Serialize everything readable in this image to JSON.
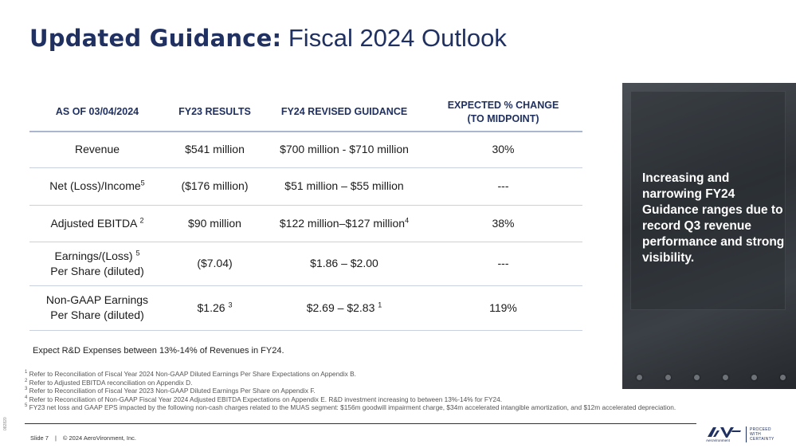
{
  "title": {
    "bold": "Updated Guidance:",
    "light": "Fiscal 2024 Outlook"
  },
  "table": {
    "headers": [
      "AS OF 03/04/2024",
      "FY23 RESULTS",
      "FY24 REVISED GUIDANCE",
      "EXPECTED % CHANGE",
      "(TO MIDPOINT)"
    ],
    "rows": [
      {
        "metric": "Revenue",
        "fy23": "$541 million",
        "fy24": "$700 million - $710 million",
        "change": "30%"
      },
      {
        "metric": "Net (Loss)/Income",
        "metric_sup": "5",
        "fy23": "($176 million)",
        "fy24": "$51 million – $55 million",
        "change": "---"
      },
      {
        "metric": "Adjusted EBITDA",
        "metric_sup": "2",
        "fy23": "$90 million",
        "fy24": "$122 million–$127 million",
        "fy24_sup": "4",
        "change": "38%"
      },
      {
        "metric_line1": "Earnings/(Loss)",
        "metric_sup": "5",
        "metric_line2": "Per Share (diluted)",
        "fy23": "($7.04)",
        "fy24": "$1.86 – $2.00",
        "change": "---"
      },
      {
        "metric_line1": "Non-GAAP Earnings",
        "metric_line2": "Per Share (diluted)",
        "fy23": "$1.26",
        "fy23_sup": "3",
        "fy24": "$2.69 – $2.83",
        "fy24_sup": "1",
        "change": "119%"
      }
    ]
  },
  "rnd_note": "Expect R&D Expenses between 13%-14% of Revenues in FY24.",
  "footnotes": [
    {
      "n": "1",
      "text": "Refer to Reconciliation of Fiscal Year 2024 Non-GAAP Diluted Earnings Per Share Expectations on Appendix B."
    },
    {
      "n": "2",
      "text": "Refer to Adjusted EBITDA reconciliation on Appendix D."
    },
    {
      "n": "3",
      "text": "Refer to Reconciliation of Fiscal Year 2023 Non-GAAP Diluted Earnings Per Share on Appendix F."
    },
    {
      "n": "4",
      "text": "Refer to Reconciliation of Non-GAAP Fiscal Year 2024 Adjusted EBITDA Expectations on Appendix E. R&D investment increasing to between 13%-14% for FY24."
    },
    {
      "n": "5",
      "text": "FY23 net loss and GAAP EPS impacted by the following non-cash charges related to the MUAS segment: $156m goodwill impairment charge, $34m accelerated intangible amortization, and $12m accelerated depreciation."
    }
  ],
  "panel_text": "Increasing and narrowing FY24 Guidance ranges due to record Q3 revenue performance and strong visibility.",
  "footer": {
    "slide": "Slide 7",
    "separator": "|",
    "copyright": "© 2024 AeroVironment, Inc."
  },
  "side_id": "082820",
  "logo": {
    "mark": "AV",
    "wordmark": "AeroVironment",
    "tag_line1": "PROCEED",
    "tag_line2": "WITH",
    "tag_line3": "CERTAINTY"
  },
  "colors": {
    "navy": "#1f3061",
    "rule": "#a9b6ce"
  }
}
